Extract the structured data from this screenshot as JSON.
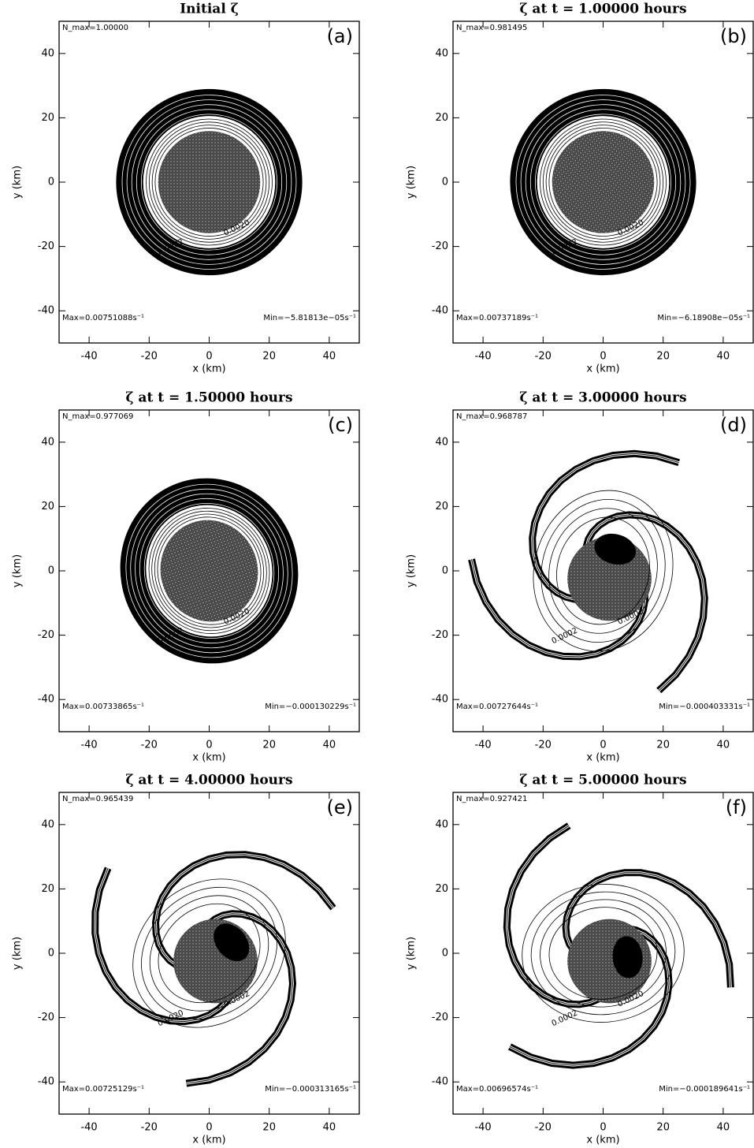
{
  "panels": [
    {
      "title": "Initial ζ",
      "tag": "(a)",
      "n_max": "N_max=1.00000",
      "max": "Max=0.00751088s⁻¹",
      "min": "Min=−5.81813e−05s⁻¹",
      "xlabel": "x (km)",
      "ylabel": "y (km)",
      "xlim": [
        -50,
        50
      ],
      "ylim": [
        -50,
        50
      ],
      "xticks": [
        -40,
        -20,
        0,
        20,
        40
      ],
      "yticks": [
        -40,
        -20,
        0,
        20,
        40
      ],
      "contour_labels": [
        "0.0020",
        "0.0002"
      ]
    },
    {
      "title": "ζ at t = 1.00000 hours",
      "tag": "(b)",
      "n_max": "N_max=0.981495",
      "max": "Max=0.00737189s⁻¹",
      "min": "Min=−6.18908e−05s⁻¹",
      "xlabel": "x (km)",
      "ylabel": "y (km)",
      "xlim": [
        -50,
        50
      ],
      "ylim": [
        -50,
        50
      ],
      "xticks": [
        -40,
        -20,
        0,
        20,
        40
      ],
      "yticks": [
        -40,
        -20,
        0,
        20,
        40
      ],
      "contour_labels": [
        "0.0020",
        "0.0002"
      ]
    },
    {
      "title": "ζ at t = 1.50000 hours",
      "tag": "(c)",
      "n_max": "N_max=0.977069",
      "max": "Max=0.00733865s⁻¹",
      "min": "Min=−0.000130229s⁻¹",
      "xlabel": "x (km)",
      "ylabel": "y (km)",
      "xlim": [
        -50,
        50
      ],
      "ylim": [
        -50,
        50
      ],
      "xticks": [
        -40,
        -20,
        0,
        20,
        40
      ],
      "yticks": [
        -40,
        -20,
        0,
        20,
        40
      ],
      "contour_labels": [
        "0.0020",
        "0.0002"
      ]
    },
    {
      "title": "ζ at t = 3.00000 hours",
      "tag": "(d)",
      "n_max": "N_max=0.968787",
      "max": "Max=0.00727644s⁻¹",
      "min": "Min=−0.000403331s⁻¹",
      "xlabel": "x (km)",
      "ylabel": "y (km)",
      "xlim": [
        -50,
        50
      ],
      "ylim": [
        -50,
        50
      ],
      "xticks": [
        -40,
        -20,
        0,
        20,
        40
      ],
      "yticks": [
        -40,
        -20,
        0,
        20,
        40
      ],
      "contour_labels": [
        "0.0002",
        "0.0002"
      ]
    },
    {
      "title": "ζ at t = 4.00000 hours",
      "tag": "(e)",
      "n_max": "N_max=0.965439",
      "max": "Max=0.00725129s⁻¹",
      "min": "Min=−0.000313165s⁻¹",
      "xlabel": "x (km)",
      "ylabel": "y (km)",
      "xlim": [
        -50,
        50
      ],
      "ylim": [
        -50,
        50
      ],
      "xticks": [
        -40,
        -20,
        0,
        20,
        40
      ],
      "yticks": [
        -40,
        -20,
        0,
        20,
        40
      ],
      "contour_labels": [
        "0.0002",
        "0.0020"
      ]
    },
    {
      "title": "ζ at t = 5.00000 hours",
      "tag": "(f)",
      "n_max": "N_max=0.927421",
      "max": "Max=0.00696574s⁻¹",
      "min": "Min=−0.000189641s⁻¹",
      "xlabel": "x (km)",
      "ylabel": "y (km)",
      "xlim": [
        -50,
        50
      ],
      "ylim": [
        -50,
        50
      ],
      "xticks": [
        -40,
        -20,
        0,
        20,
        40
      ],
      "yticks": [
        -40,
        -20,
        0,
        20,
        40
      ],
      "contour_labels": [
        "0.0020",
        "0.0002"
      ]
    }
  ]
}
